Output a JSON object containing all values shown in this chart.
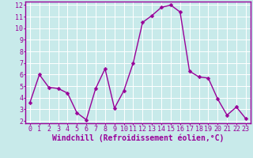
{
  "x": [
    0,
    1,
    2,
    3,
    4,
    5,
    6,
    7,
    8,
    9,
    10,
    11,
    12,
    13,
    14,
    15,
    16,
    17,
    18,
    19,
    20,
    21,
    22,
    23
  ],
  "y": [
    3.6,
    6.0,
    4.9,
    4.8,
    4.4,
    2.7,
    2.1,
    4.8,
    6.5,
    3.1,
    4.6,
    7.0,
    10.5,
    11.1,
    11.8,
    12.0,
    11.4,
    6.3,
    5.8,
    5.7,
    3.9,
    2.5,
    3.2,
    2.2
  ],
  "line_color": "#990099",
  "marker": "D",
  "marker_size": 2.5,
  "line_width": 1.0,
  "bg_color": "#c8eaea",
  "plot_bg_color": "#c8eaea",
  "grid_color": "#ffffff",
  "xlabel": "Windchill (Refroidissement éolien,°C)",
  "xlabel_color": "#990099",
  "xlabel_fontsize": 7,
  "tick_color": "#990099",
  "tick_fontsize": 6,
  "ylim": [
    1.8,
    12.3
  ],
  "xlim": [
    -0.5,
    23.5
  ],
  "yticks": [
    2,
    3,
    4,
    5,
    6,
    7,
    8,
    9,
    10,
    11,
    12
  ],
  "xticks": [
    0,
    1,
    2,
    3,
    4,
    5,
    6,
    7,
    8,
    9,
    10,
    11,
    12,
    13,
    14,
    15,
    16,
    17,
    18,
    19,
    20,
    21,
    22,
    23
  ],
  "spine_color": "#990099",
  "axis_linewidth": 1.0
}
